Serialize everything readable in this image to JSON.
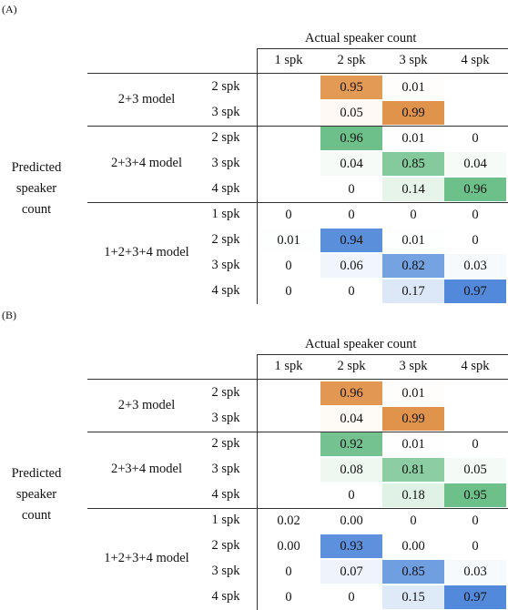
{
  "panels": [
    {
      "label": "(A)",
      "heading": "Actual speaker count",
      "columns": [
        "1 spk",
        "2 spk",
        "3 spk",
        "4 spk"
      ],
      "ylabel": [
        "Predicted",
        "speaker",
        "count"
      ],
      "groups": [
        {
          "model": "2+3 model",
          "rows": [
            {
              "label": "2 spk",
              "cells": [
                "",
                "0.95",
                "0.01",
                ""
              ],
              "colors": [
                "",
                "#E39A55",
                "#FEFDFC",
                ""
              ]
            },
            {
              "label": "3 spk",
              "cells": [
                "",
                "0.05",
                "0.99",
                ""
              ],
              "colors": [
                "",
                "#FEF9F5",
                "#E0934A",
                ""
              ]
            }
          ]
        },
        {
          "model": "2+3+4 model",
          "rows": [
            {
              "label": "2 spk",
              "cells": [
                "",
                "0.96",
                "0.01",
                "0"
              ],
              "colors": [
                "",
                "#6DC08A",
                "#FDFEFD",
                ""
              ]
            },
            {
              "label": "3 spk",
              "cells": [
                "",
                "0.04",
                "0.85",
                "0.04"
              ],
              "colors": [
                "",
                "#F6FBF7",
                "#85CA9D",
                "#F6FBF7"
              ]
            },
            {
              "label": "4 spk",
              "cells": [
                "",
                "0",
                "0.14",
                "0.96"
              ],
              "colors": [
                "",
                "",
                "#E6F4EA",
                "#6DC08A"
              ]
            }
          ]
        },
        {
          "model": "1+2+3+4 model",
          "rows": [
            {
              "label": "1 spk",
              "cells": [
                "0",
                "0",
                "0",
                "0"
              ],
              "colors": [
                "",
                "",
                "",
                ""
              ]
            },
            {
              "label": "2 spk",
              "cells": [
                "0.01",
                "0.94",
                "0.01",
                "0"
              ],
              "colors": [
                "#FDFEFE",
                "#5A8FDC",
                "#FDFEFE",
                ""
              ]
            },
            {
              "label": "3 spk",
              "cells": [
                "0",
                "0.06",
                "0.82",
                "0.03"
              ],
              "colors": [
                "",
                "#F1F6FC",
                "#75A3E2",
                "#F7FAFD"
              ]
            },
            {
              "label": "4 spk",
              "cells": [
                "0",
                "0",
                "0.17",
                "0.97"
              ],
              "colors": [
                "",
                "",
                "#DCE8F8",
                "#5389DA"
              ]
            }
          ]
        }
      ]
    },
    {
      "label": "(B)",
      "heading": "Actual speaker count",
      "columns": [
        "1 spk",
        "2 spk",
        "3 spk",
        "4 spk"
      ],
      "ylabel": [
        "Predicted",
        "speaker",
        "count"
      ],
      "groups": [
        {
          "model": "2+3 model",
          "rows": [
            {
              "label": "2 spk",
              "cells": [
                "",
                "0.96",
                "0.01",
                ""
              ],
              "colors": [
                "",
                "#E29852",
                "#FEFDFC",
                ""
              ]
            },
            {
              "label": "3 spk",
              "cells": [
                "",
                "0.04",
                "0.99",
                ""
              ],
              "colors": [
                "",
                "#FEFAF6",
                "#E0934A",
                ""
              ]
            }
          ]
        },
        {
          "model": "2+3+4 model",
          "rows": [
            {
              "label": "2 spk",
              "cells": [
                "",
                "0.92",
                "0.01",
                "0"
              ],
              "colors": [
                "",
                "#73C28F",
                "#FDFEFD",
                ""
              ]
            },
            {
              "label": "3 spk",
              "cells": [
                "",
                "0.08",
                "0.81",
                "0.05"
              ],
              "colors": [
                "",
                "#EEF8F1",
                "#8DCDA3",
                "#F4FAF6"
              ]
            },
            {
              "label": "4 spk",
              "cells": [
                "",
                "0",
                "0.18",
                "0.95"
              ],
              "colors": [
                "",
                "",
                "#E0F1E5",
                "#6DC08A"
              ]
            }
          ]
        },
        {
          "model": "1+2+3+4 model",
          "rows": [
            {
              "label": "1 spk",
              "cells": [
                "0.02",
                "0.00",
                "0",
                "0"
              ],
              "colors": [
                "",
                "",
                "",
                ""
              ]
            },
            {
              "label": "2 spk",
              "cells": [
                "0.00",
                "0.93",
                "0.00",
                "0"
              ],
              "colors": [
                "",
                "#5D91DD",
                "",
                ""
              ]
            },
            {
              "label": "3 spk",
              "cells": [
                "0",
                "0.07",
                "0.85",
                "0.03"
              ],
              "colors": [
                "",
                "#EFF4FC",
                "#6F9FE1",
                "#F7FAFD"
              ]
            },
            {
              "label": "4 spk",
              "cells": [
                "0",
                "0",
                "0.15",
                "0.97"
              ],
              "colors": [
                "",
                "",
                "#DFEAF8",
                "#5389DA"
              ]
            }
          ]
        }
      ]
    }
  ]
}
